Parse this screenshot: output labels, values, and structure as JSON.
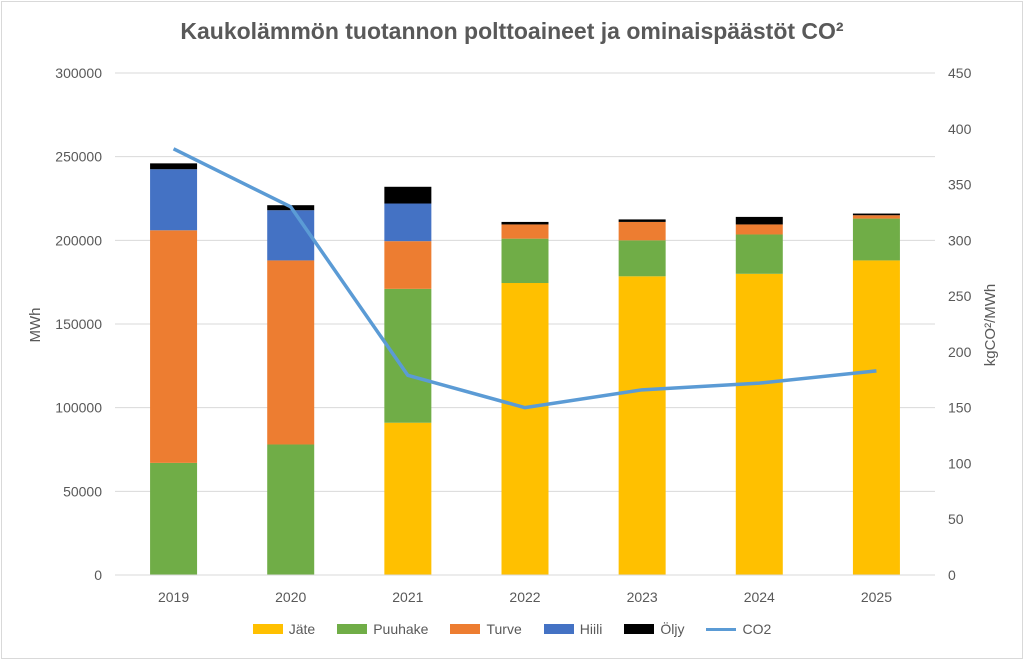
{
  "chart_data": {
    "type": "bar",
    "title": "Kaukolämmön tuotannon polttoaineet ja ominaispäästöt CO²",
    "categories": [
      "2019",
      "2020",
      "2021",
      "2022",
      "2023",
      "2024",
      "2025"
    ],
    "ylabel": "MWh",
    "y2label": "kgCO²/MWh",
    "ylim": [
      0,
      300000
    ],
    "y2lim": [
      0,
      450
    ],
    "yticks": [
      "0",
      "50000",
      "100000",
      "150000",
      "200000",
      "250000",
      "300000"
    ],
    "y2ticks": [
      "0",
      "50",
      "100",
      "150",
      "200",
      "250",
      "300",
      "350",
      "400",
      "450"
    ],
    "series": [
      {
        "name": "Jäte",
        "color": "#ffc000",
        "values": [
          0,
          0,
          91000,
          174500,
          178500,
          180000,
          188000
        ]
      },
      {
        "name": "Puuhake",
        "color": "#70ad47",
        "values": [
          67000,
          78000,
          80000,
          26500,
          21500,
          23500,
          25000
        ]
      },
      {
        "name": "Turve",
        "color": "#ed7d31",
        "values": [
          139000,
          110000,
          28500,
          8500,
          11000,
          6000,
          2000
        ]
      },
      {
        "name": "Hiili",
        "color": "#4472c4",
        "values": [
          36500,
          30000,
          22500,
          0,
          0,
          0,
          0
        ]
      },
      {
        "name": "Öljy",
        "color": "#000000",
        "values": [
          3500,
          3000,
          10000,
          1500,
          1500,
          4500,
          1000
        ]
      }
    ],
    "line": {
      "name": "CO2",
      "color": "#5b9bd5",
      "values": [
        382,
        330,
        179,
        150,
        166,
        172,
        183
      ]
    },
    "legend": "bottom",
    "grid": true
  }
}
